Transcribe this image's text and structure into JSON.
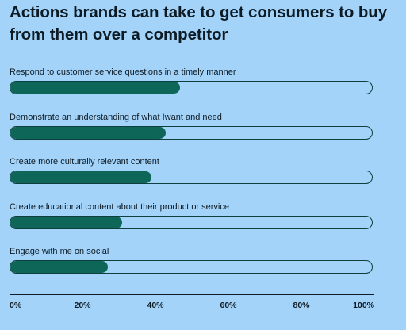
{
  "chart_data": {
    "type": "bar",
    "orientation": "horizontal",
    "title": "Actions brands can take to get consumers to buy from them over a competitor",
    "categories": [
      "Respond to customer service questions in a timely manner",
      "Demonstrate an understanding of what I\u0003want and need",
      "Create more culturally relevant content",
      "Create educational content about their product or service",
      "Engage with me on social"
    ],
    "values": [
      47,
      43,
      39,
      31,
      27
    ],
    "xlim": [
      0,
      100
    ],
    "tick_labels": [
      "0%",
      "20%",
      "40%",
      "60%",
      "80%",
      "100%"
    ],
    "colors": {
      "fill": "#0e6658",
      "track_border": "#0f3f3c",
      "background": "#a4d3fa"
    }
  }
}
